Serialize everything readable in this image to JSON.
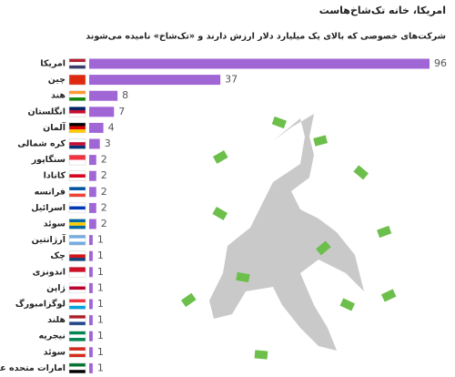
{
  "chart_data": {
    "type": "bar",
    "orientation": "horizontal",
    "title": "امریکا، خانه تک‌شاخ‌هاست",
    "subtitle": "شرکت‌های خصوصی که بالای یک میلیارد دلار ارزش دارند و «تک‌شاخ» نامیده می‌شوند",
    "categories": [
      "امریکا",
      "چین",
      "هند",
      "انگلستان",
      "آلمان",
      "کره شمالی",
      "سنگاپور",
      "کانادا",
      "فرانسه",
      "اسرائیل",
      "سوئد",
      "آرژانتین",
      "چک",
      "اندونزی",
      "ژاپن",
      "لوگزامبورگ",
      "هلند",
      "نیجریه",
      "سوئد",
      "امارات متحده عربی"
    ],
    "values": [
      96,
      37,
      8,
      7,
      4,
      3,
      2,
      2,
      2,
      2,
      2,
      1,
      1,
      1,
      1,
      1,
      1,
      1,
      1,
      1
    ],
    "color": "#a066d6"
  }
}
